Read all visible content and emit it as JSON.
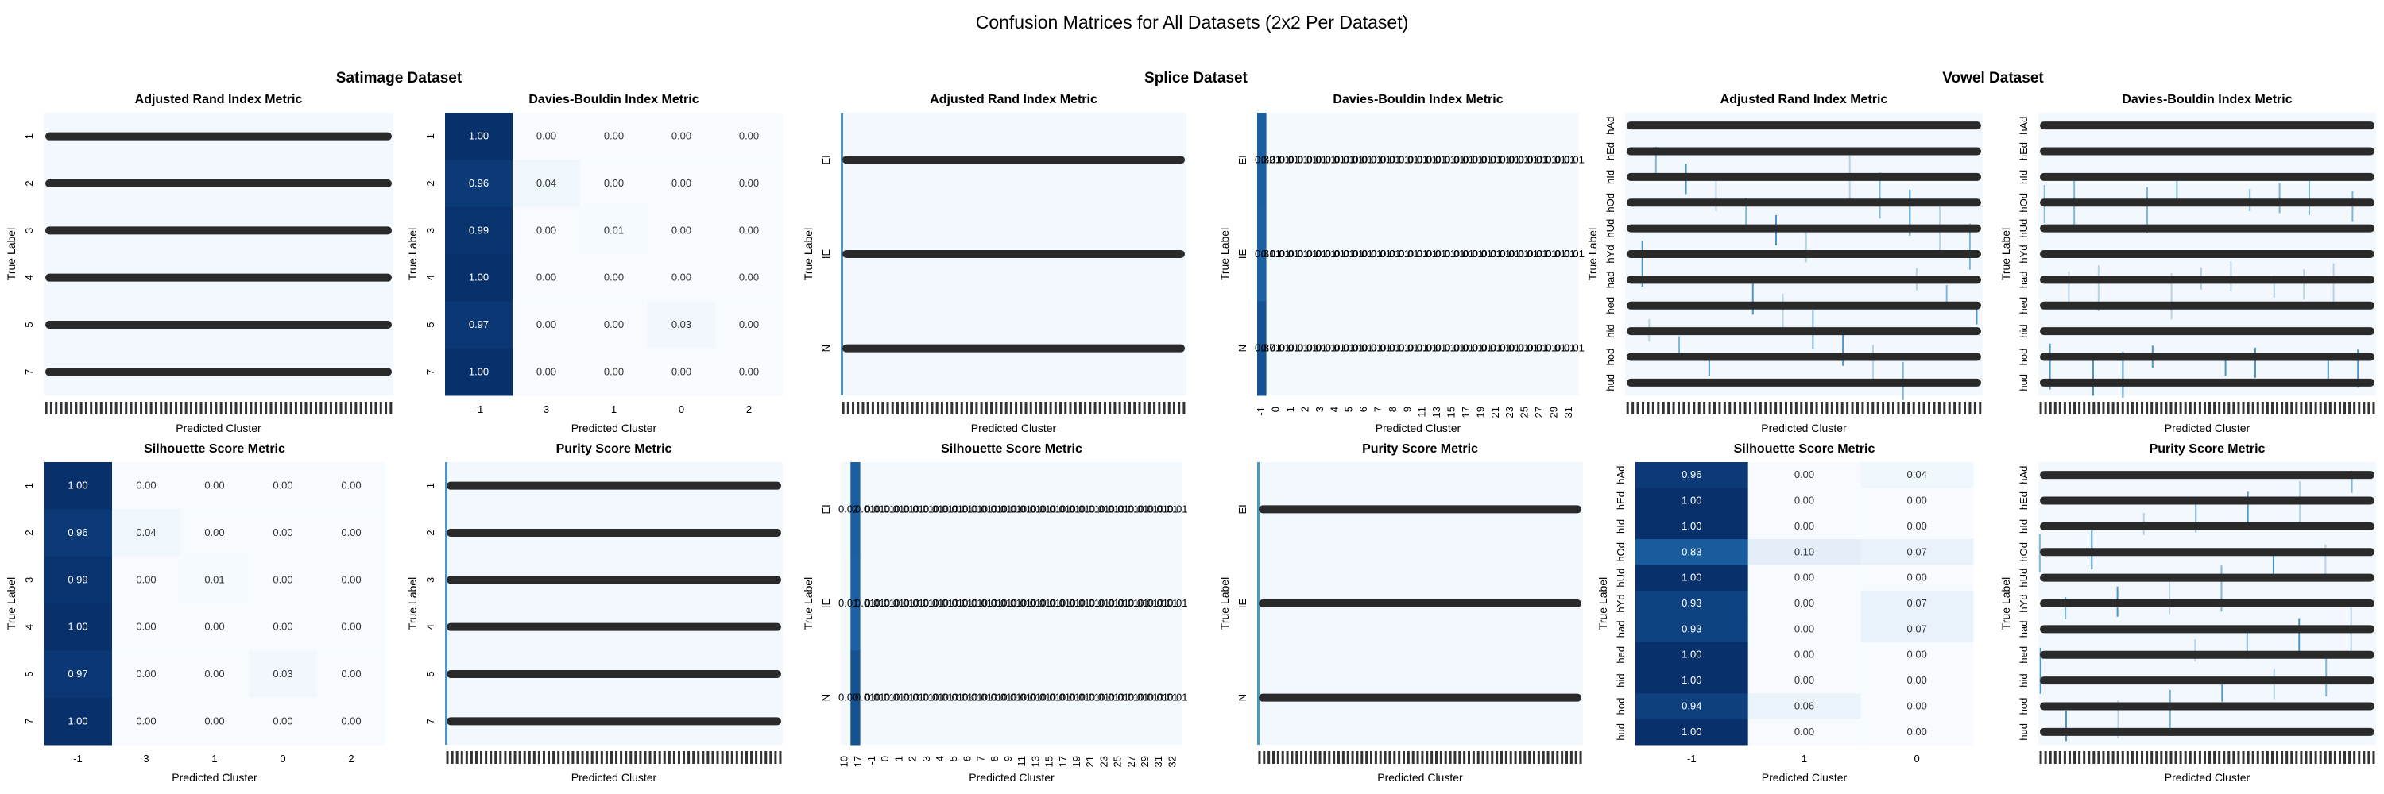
{
  "figure": {
    "title": "Confusion Matrices for All Datasets (2x2 Per Dataset)",
    "groups": [
      "Satimage Dataset",
      "Splice Dataset",
      "Vowel Dataset"
    ]
  },
  "chart_data": [
    {
      "type": "heatmap",
      "dataset": "Satimage Dataset",
      "title": "Adjusted Rand Index Metric",
      "xlabel": "Predicted Cluster",
      "ylabel": "True Label",
      "rows": [
        "1",
        "2",
        "3",
        "4",
        "5",
        "7"
      ],
      "dense": true,
      "dense_cols": 90,
      "note_display": "dense",
      "fill": "pale"
    },
    {
      "type": "heatmap",
      "dataset": "Satimage Dataset",
      "title": "Davies-Bouldin Index Metric",
      "xlabel": "Predicted Cluster",
      "ylabel": "True Label",
      "rows": [
        "1",
        "2",
        "3",
        "4",
        "5",
        "7"
      ],
      "cols": [
        "-1",
        "3",
        "1",
        "0",
        "2"
      ],
      "values": [
        [
          1.0,
          0.0,
          0.0,
          0.0,
          0.0
        ],
        [
          0.96,
          0.04,
          0.0,
          0.0,
          0.0
        ],
        [
          0.99,
          0.0,
          0.01,
          0.0,
          0.0
        ],
        [
          1.0,
          0.0,
          0.0,
          0.0,
          0.0
        ],
        [
          0.97,
          0.0,
          0.0,
          0.03,
          0.0
        ],
        [
          1.0,
          0.0,
          0.0,
          0.0,
          0.0
        ]
      ],
      "fmt": "0.00"
    },
    {
      "type": "heatmap",
      "dataset": "Satimage Dataset",
      "title": "Silhouette Score Metric",
      "xlabel": "Predicted Cluster",
      "ylabel": "True Label",
      "rows": [
        "1",
        "2",
        "3",
        "4",
        "5",
        "7"
      ],
      "cols": [
        "-1",
        "3",
        "1",
        "0",
        "2"
      ],
      "values": [
        [
          1.0,
          0.0,
          0.0,
          0.0,
          0.0
        ],
        [
          0.96,
          0.04,
          0.0,
          0.0,
          0.0
        ],
        [
          0.99,
          0.0,
          0.01,
          0.0,
          0.0
        ],
        [
          1.0,
          0.0,
          0.0,
          0.0,
          0.0
        ],
        [
          0.97,
          0.0,
          0.0,
          0.03,
          0.0
        ],
        [
          1.0,
          0.0,
          0.0,
          0.0,
          0.0
        ]
      ],
      "fmt": "0.00"
    },
    {
      "type": "heatmap",
      "dataset": "Satimage Dataset",
      "title": "Purity Score Metric",
      "xlabel": "Predicted Cluster",
      "ylabel": "True Label",
      "rows": [
        "1",
        "2",
        "3",
        "4",
        "5",
        "7"
      ],
      "dense": true,
      "dense_cols": 120,
      "fill": "pale-firstcol"
    },
    {
      "type": "heatmap",
      "dataset": "Splice Dataset",
      "title": "Adjusted Rand Index Metric",
      "xlabel": "Predicted Cluster",
      "ylabel": "True Label",
      "rows": [
        "EI",
        "IE",
        "N"
      ],
      "dense": true,
      "dense_cols": 120,
      "fill": "pale-firstcol"
    },
    {
      "type": "heatmap",
      "dataset": "Splice Dataset",
      "title": "Davies-Bouldin Index Metric",
      "xlabel": "Predicted Cluster",
      "ylabel": "True Label",
      "rows": [
        "EI",
        "IE",
        "N"
      ],
      "cols": [
        "-1",
        "0",
        "1",
        "2",
        "3",
        "4",
        "5",
        "6",
        "7",
        "8",
        "9",
        "10",
        "11",
        "12",
        "13",
        "14",
        "15",
        "16",
        "17",
        "18",
        "19",
        "20",
        "21",
        "22",
        "23",
        "24",
        "25",
        "26",
        "27",
        "28",
        "29",
        "30",
        "31",
        "32",
        "33"
      ],
      "tick_labels": [
        "-1",
        "0",
        "1",
        "2",
        "3",
        "4",
        "5",
        "6",
        "7",
        "8",
        "9",
        "11",
        "13",
        "15",
        "17",
        "19",
        "21",
        "23",
        "25",
        "27",
        "29",
        "31"
      ],
      "lead_col_vals": [
        0.82,
        0.81,
        0.87
      ],
      "lead_labels": [
        "0.82",
        "0.81",
        "0.87"
      ],
      "cell_label": "0.01",
      "fill": "firstcol-strong"
    },
    {
      "type": "heatmap",
      "dataset": "Splice Dataset",
      "title": "Silhouette Score Metric",
      "xlabel": "Predicted Cluster",
      "ylabel": "True Label",
      "rows": [
        "EI",
        "IE",
        "N"
      ],
      "cols": [
        "-1",
        "0",
        "1",
        "2",
        "3",
        "4",
        "5",
        "6",
        "7",
        "8",
        "9",
        "10",
        "11",
        "12",
        "13",
        "14",
        "15",
        "16",
        "17",
        "18",
        "19",
        "20",
        "21",
        "22",
        "23",
        "24",
        "25",
        "26",
        "27",
        "28",
        "29",
        "30",
        "31",
        "32",
        "33"
      ],
      "tick_labels": [
        "10",
        "17",
        "-1",
        "0",
        "1",
        "2",
        "3",
        "4",
        "5",
        "6",
        "7",
        "8",
        "9",
        "11",
        "13",
        "15",
        "17",
        "19",
        "21",
        "23",
        "25",
        "27",
        "29",
        "31",
        "32"
      ],
      "lead_col_vals": [
        0.82,
        0.81,
        0.87
      ],
      "lead_labels": [
        "0.02",
        "0.01",
        "0.00"
      ],
      "cell_label": "0.01",
      "fill": "secondcol-strong"
    },
    {
      "type": "heatmap",
      "dataset": "Splice Dataset",
      "title": "Purity Score Metric",
      "xlabel": "Predicted Cluster",
      "ylabel": "True Label",
      "rows": [
        "EI",
        "IE",
        "N"
      ],
      "dense": true,
      "dense_cols": 120,
      "fill": "pale-firstcol"
    },
    {
      "type": "heatmap",
      "dataset": "Vowel Dataset",
      "title": "Adjusted Rand Index Metric",
      "xlabel": "Predicted Cluster",
      "ylabel": "True Label",
      "rows": [
        "hAd",
        "hEd",
        "hId",
        "hOd",
        "hUd",
        "hYd",
        "had",
        "hed",
        "hid",
        "hod",
        "hud"
      ],
      "dense": true,
      "dense_cols": 100,
      "fill": "sparse-lines"
    },
    {
      "type": "heatmap",
      "dataset": "Vowel Dataset",
      "title": "Davies-Bouldin Index Metric",
      "xlabel": "Predicted Cluster",
      "ylabel": "True Label",
      "rows": [
        "hAd",
        "hEd",
        "hId",
        "hOd",
        "hUd",
        "hYd",
        "had",
        "hed",
        "hid",
        "hod",
        "hud"
      ],
      "dense": true,
      "dense_cols": 100,
      "fill": "sparse-lines"
    },
    {
      "type": "heatmap",
      "dataset": "Vowel Dataset",
      "title": "Silhouette Score Metric",
      "xlabel": "Predicted Cluster",
      "ylabel": "True Label",
      "rows": [
        "hAd",
        "hEd",
        "hId",
        "hOd",
        "hUd",
        "hYd",
        "had",
        "hed",
        "hid",
        "hod",
        "hud"
      ],
      "cols": [
        "-1",
        "1",
        "0"
      ],
      "values": [
        [
          0.96,
          0.0,
          0.04
        ],
        [
          1.0,
          0.0,
          0.0
        ],
        [
          1.0,
          0.0,
          0.0
        ],
        [
          0.83,
          0.1,
          0.07
        ],
        [
          1.0,
          0.0,
          0.0
        ],
        [
          0.93,
          0.0,
          0.07
        ],
        [
          0.93,
          0.0,
          0.07
        ],
        [
          1.0,
          0.0,
          0.0
        ],
        [
          1.0,
          0.0,
          0.0
        ],
        [
          0.94,
          0.06,
          0.0
        ],
        [
          1.0,
          0.0,
          0.0
        ]
      ],
      "fmt": "0.00"
    },
    {
      "type": "heatmap",
      "dataset": "Vowel Dataset",
      "title": "Purity Score Metric",
      "xlabel": "Predicted Cluster",
      "ylabel": "True Label",
      "rows": [
        "hAd",
        "hEd",
        "hId",
        "hOd",
        "hUd",
        "hYd",
        "had",
        "hed",
        "hid",
        "hod",
        "hud"
      ],
      "dense": true,
      "dense_cols": 100,
      "fill": "sparse-lines"
    }
  ]
}
